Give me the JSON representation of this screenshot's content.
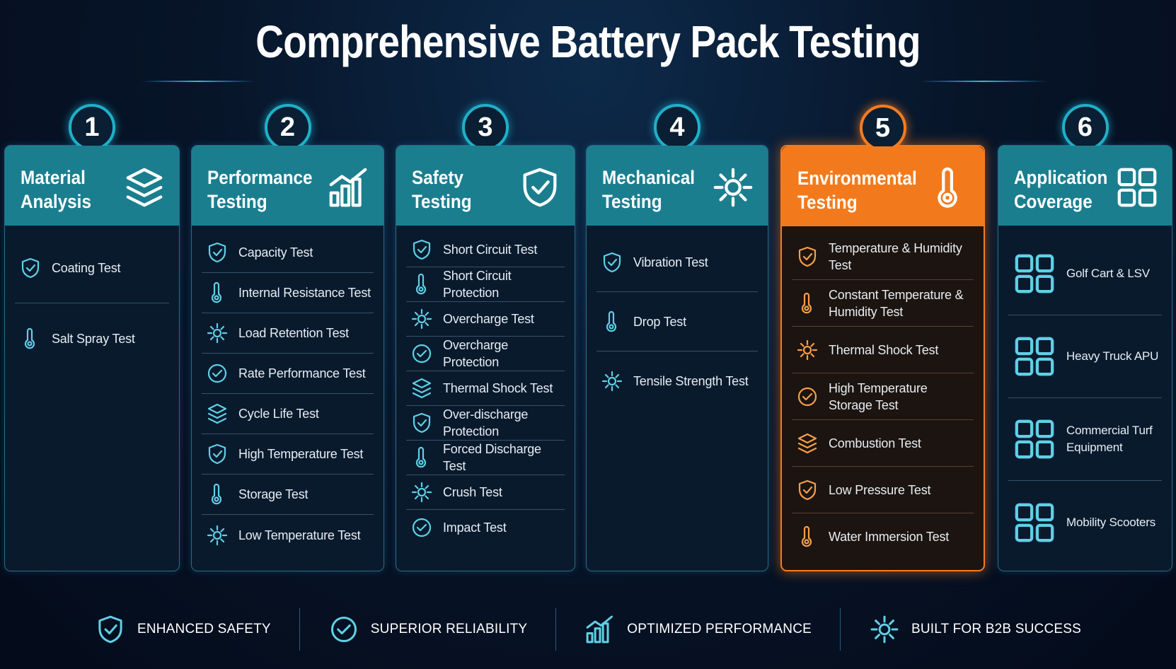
{
  "title": "Comprehensive Battery Pack Testing",
  "columns": [
    {
      "number": "1",
      "title": "Material Analysis",
      "items": [
        "Coating Test",
        "Salt Spray Test"
      ]
    },
    {
      "number": "2",
      "title": "Performance Testing",
      "items": [
        "Capacity Test",
        "Internal Resistance Test",
        "Load Retention Test",
        "Rate Performance Test",
        "Cycle Life Test",
        "High Temperature Test",
        "Storage Test",
        "Low Temperature Test"
      ]
    },
    {
      "number": "3",
      "title": "Safety Testing",
      "items": [
        "Short Circuit Test",
        "Short Circuit Protection",
        "Overcharge Test",
        "Overcharge Protection",
        "Thermal Shock Test",
        "Over-discharge Protection",
        "Forced Discharge Test",
        "Crush Test",
        "Impact Test"
      ]
    },
    {
      "number": "4",
      "title": "Mechanical Testing",
      "items": [
        "Vibration Test",
        "Drop Test",
        "Tensile Strength Test"
      ]
    },
    {
      "number": "5",
      "title": "Environmental Testing",
      "items": [
        "Temperature & Humidity Test",
        "Constant Temperature & Humidity Test",
        "Thermal Shock Test",
        "High Temperature Storage Test",
        "Combustion Test",
        "Low Pressure Test",
        "Water Immersion Test"
      ]
    },
    {
      "number": "6",
      "title": "Application Coverage",
      "items": [
        "Golf Cart & LSV",
        "Heavy Truck APU",
        "Commercial Turf Equipment",
        "Mobility Scooters"
      ]
    }
  ],
  "footer": [
    "ENHANCED SAFETY",
    "SUPERIOR RELIABILITY",
    "OPTIMIZED PERFORMANCE",
    "BUILT FOR B2B SUCCESS"
  ]
}
